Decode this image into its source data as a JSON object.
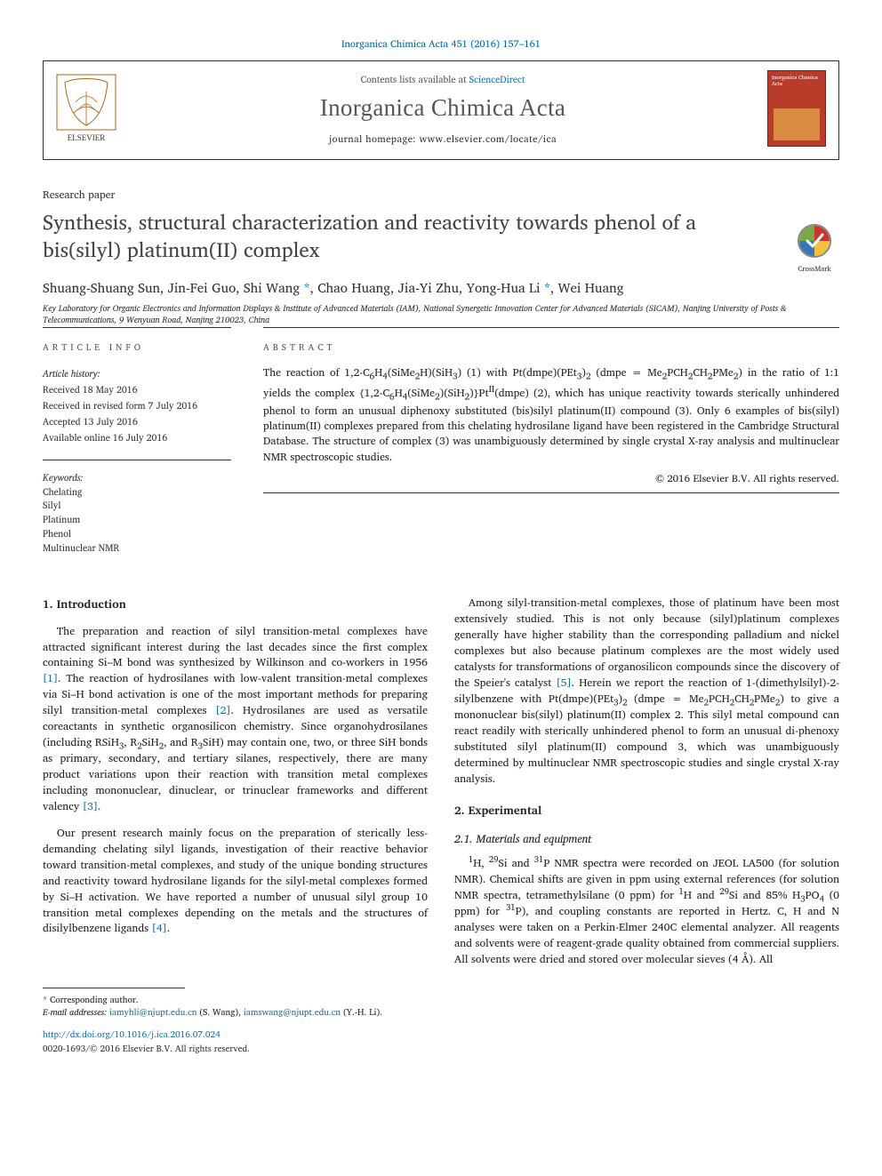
{
  "citation": "Inorganica Chimica Acta 451 (2016) 157–161",
  "header": {
    "contents_prefix": "Contents lists available at ",
    "contents_link": "ScienceDirect",
    "journal": "Inorganica Chimica Acta",
    "homepage_label": "journal homepage: ",
    "homepage_url": "www.elsevier.com/locate/ica",
    "cover_title": "Inorganica Chimica Acta"
  },
  "kicker": "Research paper",
  "title": "Synthesis, structural characterization and reactivity towards phenol of a bis(silyl) platinum(II) complex",
  "crossmark": "CrossMark",
  "authors": "Shuang-Shuang Sun, Jin-Fei Guo, Shi Wang *, Chao Huang, Jia-Yi Zhu, Yong-Hua Li *, Wei Huang",
  "affiliation": "Key Laboratory for Organic Electronics and Information Displays & Institute of Advanced Materials (IAM), National Synergetic Innovation Center for Advanced Materials (SICAM), Nanjing University of Posts & Telecommunications, 9 Wenyuan Road, Nanjing 210023, China",
  "article_info_head": "ARTICLE INFO",
  "abstract_head": "ABSTRACT",
  "history_label": "Article history:",
  "history": [
    "Received 18 May 2016",
    "Received in revised form 7 July 2016",
    "Accepted 13 July 2016",
    "Available online 16 July 2016"
  ],
  "keywords_label": "Keywords:",
  "keywords": [
    "Chelating",
    "Silyl",
    "Platinum",
    "Phenol",
    "Multinuclear NMR"
  ],
  "abstract": "The reaction of 1,2-C₆H₄(SiMe₂H)(SiH₃) (1) with Pt(dmpe)(PEt₃)₂ (dmpe = Me₂PCH₂CH₂PMe₂) in the ratio of 1:1 yields the complex {1,2-C₆H₄(SiMe₂)(SiH₂)}Ptᴵᴵ(dmpe) (2), which has unique reactivity towards sterically unhindered phenol to form an unusual diphenoxy substituted (bis)silyl platinum(II) compound (3). Only 6 examples of bis(silyl) platinum(II) complexes prepared from this chelating hydrosilane ligand have been registered in the Cambridge Structural Database. The structure of complex (3) was unambiguously determined by single crystal X-ray analysis and multinuclear NMR spectroscopic studies.",
  "copyright": "© 2016 Elsevier B.V. All rights reserved.",
  "sections": {
    "intro_head": "1. Introduction",
    "intro_p1": "The preparation and reaction of silyl transition-metal complexes have attracted significant interest during the last decades since the first complex containing Si–M bond was synthesized by Wilkinson and co-workers in 1956 [1]. The reaction of hydrosilanes with low-valent transition-metal complexes via Si–H bond activation is one of the most important methods for preparing silyl transition-metal complexes [2]. Hydrosilanes are used as versatile coreactants in synthetic organosilicon chemistry. Since organohydrosilanes (including RSiH₃, R₂SiH₂, and R₃SiH) may contain one, two, or three SiH bonds as primary, secondary, and tertiary silanes, respectively, there are many product variations upon their reaction with transition metal complexes including mononuclear, dinuclear, or trinuclear frameworks and different valency [3].",
    "intro_p2": "Our present research mainly focus on the preparation of sterically less-demanding chelating silyl ligands, investigation of their reactive behavior toward transition-metal complexes, and study of the unique bonding structures and reactivity toward hydrosilane ligands for the silyl-metal complexes formed by Si–H activation. We have reported a number of unusual silyl group 10 transition metal complexes depending on the metals and the structures of disilylbenzene ligands [4].",
    "intro_p3": "Among silyl-transition-metal complexes, those of platinum have been most extensively studied. This is not only because (silyl)platinum complexes generally have higher stability than the corresponding palladium and nickel complexes but also because platinum complexes are the most widely used catalysts for transformations of organosilicon compounds since the discovery of the Speier's catalyst [5]. Herein we report the reaction of 1-(dimethylsilyl)-2-silylbenzene with Pt(dmpe)(PEt₃)₂ (dmpe = Me₂PCH₂CH₂PMe₂) to give a mononuclear bis(silyl) platinum(II) complex 2. This silyl metal compound can react readily with sterically unhindered phenol to form an unusual di-phenoxy substituted silyl platinum(II) compound 3, which was unambiguously determined by multinuclear NMR spectroscopic studies and single crystal X-ray analysis.",
    "exp_head": "2. Experimental",
    "exp_sub": "2.1. Materials and equipment",
    "exp_p1": "¹H, ²⁹Si and ³¹P NMR spectra were recorded on JEOL LA500 (for solution NMR). Chemical shifts are given in ppm using external references (for solution NMR spectra, tetramethylsilane (0 ppm) for ¹H and ²⁹Si and 85% H₃PO₄ (0 ppm) for ³¹P), and coupling constants are reported in Hertz. C, H and N analyses were taken on a Perkin-Elmer 240C elemental analyzer. All reagents and solvents were of reagent-grade quality obtained from commercial suppliers. All solvents were dried and stored over molecular sieves (4 Å). All"
  },
  "footnotes": {
    "corr_label": "* Corresponding author.",
    "email_label": "E-mail addresses:",
    "e1": "iamyhli@njupt.edu.cn",
    "e1_name": " (S. Wang), ",
    "e2": "iamswang@njupt.edu.cn",
    "e2_name": "(Y.-H. Li)."
  },
  "doi": {
    "url": "http://dx.doi.org/10.1016/j.ica.2016.07.024",
    "issn": "0020-1693/© 2016 Elsevier B.V. All rights reserved."
  }
}
